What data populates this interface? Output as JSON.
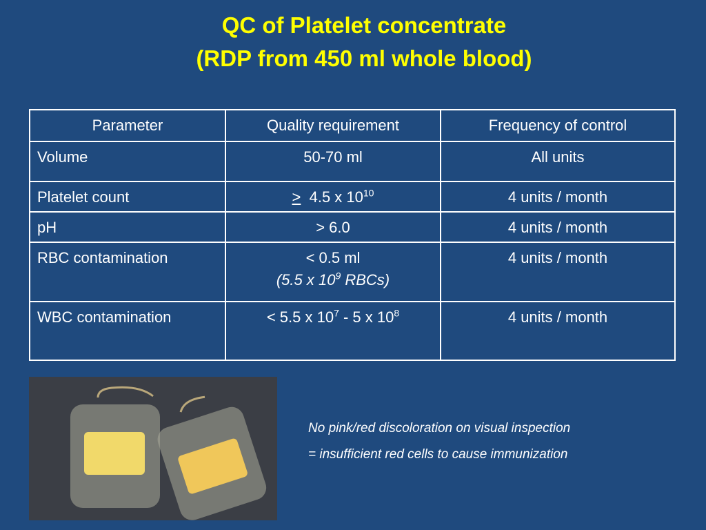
{
  "title": [
    "QC of Platelet concentrate",
    "(RDP from 450 ml whole blood)"
  ],
  "table": {
    "header": [
      "Parameter",
      "Quality requirement",
      "Frequency of control"
    ],
    "rows": [
      [
        "Volume",
        "50-70 ml",
        "All units"
      ],
      [
        "Platelet count",
        [
          ">",
          "4.5 x 10",
          "10"
        ],
        "4 units / month"
      ],
      [
        "pH",
        "> 6.0",
        "4 units / month"
      ],
      [
        "RBC contamination",
        [
          "< 0.5 ml",
          "(5.5 x 10",
          "9",
          " RBCs)"
        ],
        "4 units / month"
      ],
      [
        "WBC contamination",
        [
          "< 5.5 x 10",
          "7",
          " - 5 x 10",
          "8"
        ],
        "4 units / month"
      ]
    ]
  },
  "caption": [
    "No pink/red discoloration on visual inspection",
    "= insufficient red cells to cause immunization"
  ]
}
